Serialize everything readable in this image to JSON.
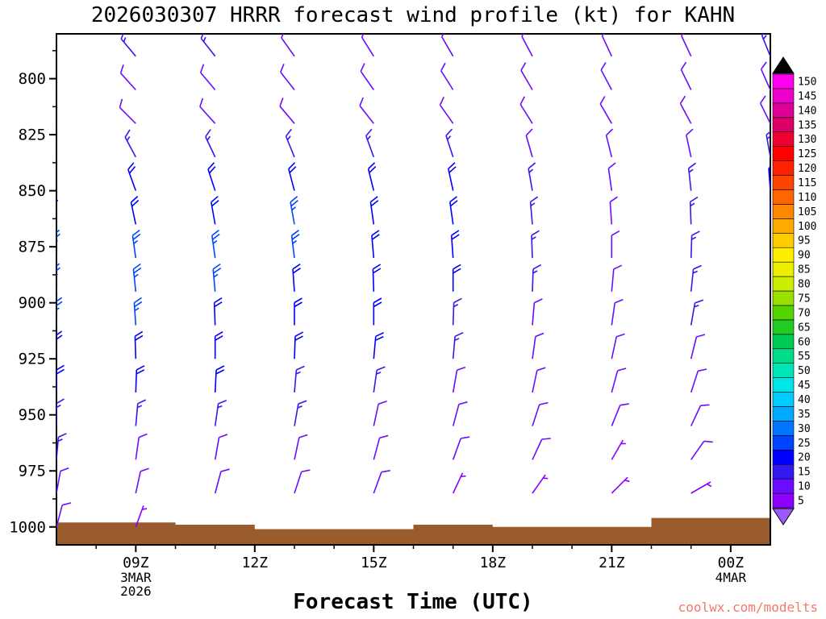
{
  "watermark": {
    "text": "coolwx.com/modelts",
    "color": "#f4786d"
  },
  "colors": {
    "terrain": "#9a5b2d",
    "frame": "#000000",
    "background": "#ffffff"
  },
  "chart_data": {
    "type": "wind_profile_barbs",
    "title": "2026030307 HRRR forecast wind profile (kt) for KAHN",
    "xlabel": "Forecast Time (UTC)",
    "units": "kt",
    "axes": {
      "y_ticks": [
        800,
        825,
        850,
        875,
        900,
        925,
        950,
        975,
        1000
      ],
      "y_range": [
        780,
        1008
      ],
      "x_range_hours": [
        7,
        25
      ],
      "minor_tick_every_hours": 1,
      "x_major_ticks": [
        {
          "hour": 9,
          "label": "09Z",
          "sub": [
            "3MAR",
            "2026"
          ]
        },
        {
          "hour": 12,
          "label": "12Z",
          "sub": []
        },
        {
          "hour": 15,
          "label": "15Z",
          "sub": []
        },
        {
          "hour": 18,
          "label": "18Z",
          "sub": []
        },
        {
          "hour": 21,
          "label": "21Z",
          "sub": []
        },
        {
          "hour": 24,
          "label": "00Z",
          "sub": [
            "4MAR"
          ]
        }
      ]
    },
    "colorbar": {
      "values": [
        5,
        10,
        15,
        20,
        25,
        30,
        35,
        40,
        45,
        50,
        55,
        60,
        65,
        70,
        75,
        80,
        85,
        90,
        95,
        100,
        105,
        110,
        115,
        120,
        125,
        130,
        135,
        140,
        145,
        150
      ],
      "colors": [
        "#8b00ff",
        "#6a0dff",
        "#3318f0",
        "#0000ff",
        "#0044ff",
        "#0077ff",
        "#00aaff",
        "#00ccff",
        "#00e6e6",
        "#00e6b8",
        "#00dd88",
        "#00cc55",
        "#22cc22",
        "#55d500",
        "#99e000",
        "#ccee00",
        "#eeee00",
        "#ffee00",
        "#ffcc00",
        "#ffaa00",
        "#ff8800",
        "#ff6600",
        "#ff4400",
        "#ff2200",
        "#ff0000",
        "#ee0033",
        "#dd0066",
        "#dd0099",
        "#ee00cc",
        "#ff00ee"
      ],
      "top_arrow_color": "#000000",
      "bottom_arrow_color": "#9b59ff"
    },
    "terrain": {
      "hours": [
        7,
        9,
        11,
        13,
        15,
        17,
        19,
        21,
        23,
        25
      ],
      "top_pressure": [
        998,
        998,
        999,
        1001,
        1001,
        999,
        1000,
        1000,
        996,
        996
      ]
    },
    "columns": [
      {
        "hour": 7,
        "levels": [
          [
            790,
            15,
            320
          ],
          [
            805,
            10,
            315
          ],
          [
            820,
            10,
            310
          ],
          [
            835,
            15,
            330
          ],
          [
            850,
            15,
            340
          ],
          [
            865,
            20,
            345
          ],
          [
            880,
            25,
            350
          ],
          [
            895,
            25,
            350
          ],
          [
            910,
            25,
            355
          ],
          [
            925,
            20,
            355
          ],
          [
            940,
            20,
            0
          ],
          [
            955,
            15,
            0
          ],
          [
            970,
            15,
            5
          ],
          [
            985,
            10,
            10
          ],
          [
            1000,
            10,
            15
          ]
        ]
      },
      {
        "hour": 9,
        "levels": [
          [
            790,
            15,
            320
          ],
          [
            805,
            10,
            318
          ],
          [
            820,
            10,
            315
          ],
          [
            835,
            15,
            332
          ],
          [
            850,
            20,
            340
          ],
          [
            865,
            20,
            348
          ],
          [
            880,
            25,
            352
          ],
          [
            895,
            25,
            354
          ],
          [
            910,
            25,
            356
          ],
          [
            925,
            20,
            358
          ],
          [
            940,
            20,
            2
          ],
          [
            955,
            15,
            5
          ],
          [
            970,
            10,
            8
          ],
          [
            985,
            10,
            12
          ],
          [
            1000,
            5,
            20
          ]
        ]
      },
      {
        "hour": 11,
        "levels": [
          [
            790,
            15,
            322
          ],
          [
            805,
            10,
            320
          ],
          [
            820,
            10,
            318
          ],
          [
            835,
            15,
            335
          ],
          [
            850,
            20,
            342
          ],
          [
            865,
            20,
            350
          ],
          [
            880,
            25,
            352
          ],
          [
            895,
            25,
            355
          ],
          [
            910,
            20,
            358
          ],
          [
            925,
            20,
            0
          ],
          [
            940,
            20,
            3
          ],
          [
            955,
            15,
            8
          ],
          [
            970,
            10,
            10
          ],
          [
            985,
            10,
            15
          ]
        ]
      },
      {
        "hour": 13,
        "levels": [
          [
            790,
            10,
            325
          ],
          [
            805,
            10,
            322
          ],
          [
            820,
            10,
            320
          ],
          [
            835,
            15,
            338
          ],
          [
            850,
            20,
            345
          ],
          [
            865,
            25,
            350
          ],
          [
            880,
            25,
            353
          ],
          [
            895,
            20,
            356
          ],
          [
            910,
            20,
            0
          ],
          [
            925,
            20,
            2
          ],
          [
            940,
            15,
            5
          ],
          [
            955,
            15,
            10
          ],
          [
            970,
            10,
            12
          ],
          [
            985,
            10,
            18
          ]
        ]
      },
      {
        "hour": 15,
        "levels": [
          [
            790,
            10,
            328
          ],
          [
            805,
            10,
            325
          ],
          [
            820,
            10,
            322
          ],
          [
            835,
            15,
            340
          ],
          [
            850,
            20,
            346
          ],
          [
            865,
            20,
            352
          ],
          [
            880,
            20,
            355
          ],
          [
            895,
            20,
            358
          ],
          [
            910,
            20,
            0
          ],
          [
            925,
            20,
            5
          ],
          [
            940,
            15,
            8
          ],
          [
            955,
            10,
            12
          ],
          [
            970,
            10,
            15
          ],
          [
            985,
            10,
            20
          ]
        ]
      },
      {
        "hour": 17,
        "levels": [
          [
            790,
            10,
            330
          ],
          [
            805,
            10,
            328
          ],
          [
            820,
            10,
            325
          ],
          [
            835,
            15,
            342
          ],
          [
            850,
            20,
            348
          ],
          [
            865,
            20,
            352
          ],
          [
            880,
            20,
            356
          ],
          [
            895,
            20,
            0
          ],
          [
            910,
            15,
            2
          ],
          [
            925,
            15,
            5
          ],
          [
            940,
            10,
            10
          ],
          [
            955,
            10,
            15
          ],
          [
            970,
            10,
            20
          ],
          [
            985,
            5,
            25
          ]
        ]
      },
      {
        "hour": 19,
        "levels": [
          [
            790,
            10,
            332
          ],
          [
            805,
            10,
            330
          ],
          [
            820,
            10,
            328
          ],
          [
            835,
            10,
            344
          ],
          [
            850,
            15,
            350
          ],
          [
            865,
            15,
            355
          ],
          [
            880,
            15,
            358
          ],
          [
            895,
            15,
            2
          ],
          [
            910,
            10,
            5
          ],
          [
            925,
            10,
            8
          ],
          [
            940,
            10,
            12
          ],
          [
            955,
            10,
            18
          ],
          [
            970,
            10,
            25
          ],
          [
            985,
            5,
            35
          ]
        ]
      },
      {
        "hour": 21,
        "levels": [
          [
            790,
            10,
            335
          ],
          [
            805,
            10,
            332
          ],
          [
            820,
            10,
            330
          ],
          [
            835,
            10,
            346
          ],
          [
            850,
            10,
            352
          ],
          [
            865,
            10,
            356
          ],
          [
            880,
            10,
            0
          ],
          [
            895,
            10,
            5
          ],
          [
            910,
            10,
            8
          ],
          [
            925,
            10,
            12
          ],
          [
            940,
            10,
            15
          ],
          [
            955,
            10,
            22
          ],
          [
            970,
            5,
            30
          ],
          [
            985,
            5,
            45
          ]
        ]
      },
      {
        "hour": 23,
        "levels": [
          [
            790,
            10,
            335
          ],
          [
            805,
            10,
            334
          ],
          [
            820,
            10,
            332
          ],
          [
            835,
            10,
            348
          ],
          [
            850,
            15,
            354
          ],
          [
            865,
            15,
            358
          ],
          [
            880,
            15,
            2
          ],
          [
            895,
            15,
            6
          ],
          [
            910,
            15,
            10
          ],
          [
            925,
            10,
            14
          ],
          [
            940,
            10,
            18
          ],
          [
            955,
            10,
            25
          ],
          [
            970,
            10,
            35
          ],
          [
            985,
            5,
            60
          ]
        ]
      },
      {
        "hour": 25,
        "levels": [
          [
            790,
            15,
            338
          ],
          [
            805,
            10,
            336
          ],
          [
            820,
            10,
            334
          ],
          [
            835,
            15,
            350
          ],
          [
            850,
            20,
            356
          ],
          [
            865,
            20,
            0
          ],
          [
            880,
            20,
            4
          ],
          [
            895,
            20,
            8
          ],
          [
            910,
            20,
            12
          ],
          [
            925,
            20,
            16
          ],
          [
            940,
            15,
            20
          ],
          [
            955,
            10,
            28
          ],
          [
            970,
            10,
            40
          ],
          [
            985,
            10,
            70
          ]
        ]
      }
    ]
  }
}
